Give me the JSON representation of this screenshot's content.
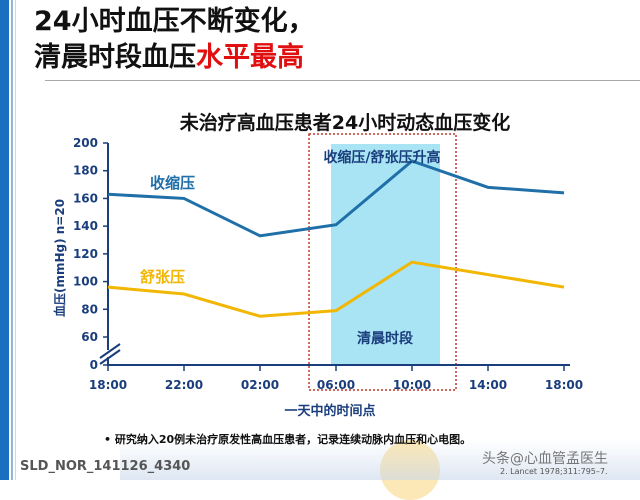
{
  "title": {
    "line1": "24小时血压不断变化，",
    "line2_black": "清晨时段血压",
    "line2_red": "水平最高"
  },
  "colors": {
    "systolic": "#1f6fa8",
    "diastolic": "#f2b705",
    "shade": "#a8e4f4",
    "box": "#c0392b"
  },
  "chart_data": {
    "type": "line",
    "title": "未治疗高血压患者24小时动态血压变化",
    "xlabel": "一天中的时间点",
    "ylabel": "血压(mmHg) n=20",
    "categories": [
      "18:00",
      "22:00",
      "02:00",
      "06:00",
      "10:00",
      "14:00",
      "18:00"
    ],
    "yticks": [
      0,
      60,
      80,
      100,
      120,
      140,
      160,
      180,
      200
    ],
    "ylim": [
      0,
      200
    ],
    "axis_break": true,
    "series": [
      {
        "name": "收缩压",
        "values": [
          163,
          160,
          133,
          141,
          187,
          168,
          164
        ]
      },
      {
        "name": "舒张压",
        "values": [
          96,
          91,
          75,
          79,
          114,
          105,
          96
        ]
      }
    ],
    "annotations": {
      "rise_label": "收缩压/舒张压升高",
      "morning_label": "清晨时段"
    }
  },
  "footer": {
    "note": "研究纳入20例未治疗原发性高血压患者，记录连续动脉内血压和心电图。",
    "code": "SLD_NOR_141126_4340",
    "watermark": "头条@心血管孟医生",
    "reference": "2. Lancet 1978;311:795–7."
  }
}
